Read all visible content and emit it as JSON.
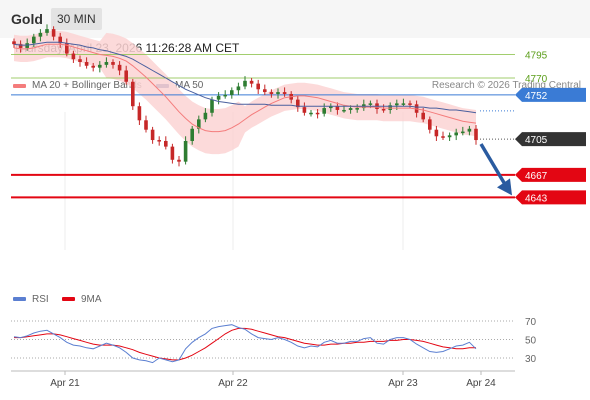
{
  "header": {
    "title": "Gold",
    "period": "30 MIN",
    "datetime": "Thursday, April 23, 2026 11:26:28 AM CET"
  },
  "legend": {
    "ma20": "MA 20 + Bollinger Bands",
    "ma50": "MA 50",
    "credit": "Research © 2026 Trading Central"
  },
  "colors": {
    "ma20": "#f47c7c",
    "bands": "#fbd3d3",
    "ma50": "#4a5f9e",
    "resistance": "#8bc34a",
    "pivot": "#3a7bd5",
    "support": "#e30613",
    "last": "#333333",
    "bull": "#2e7d32",
    "bear": "#c62828",
    "arrow": "#2a5ba0",
    "rsi": "#5b7fd1",
    "rsi_ma": "#e30613"
  },
  "levels": [
    {
      "label": "4795",
      "kind": "resistance"
    },
    {
      "label": "4770",
      "kind": "resistance"
    },
    {
      "label": "4752",
      "kind": "pivot"
    },
    {
      "label": "4705",
      "kind": "last"
    },
    {
      "label": "4667",
      "kind": "support"
    },
    {
      "label": "4643",
      "kind": "support"
    }
  ],
  "rsi_legend": {
    "rsi": "RSI",
    "ma": "9MA"
  },
  "rsi_axis": [
    "70",
    "50",
    "30"
  ],
  "x_axis": [
    "Apr 21",
    "Apr 22",
    "Apr 23",
    "Apr 24"
  ],
  "chart_data": {
    "type": "candlestick",
    "y_min": 4630,
    "y_max": 4830,
    "start": [
      4809,
      4806,
      4802,
      4807,
      4814,
      4818,
      4822,
      4814,
      4807,
      4796,
      4790,
      4787,
      4783,
      4781,
      4784,
      4787,
      4784,
      4778,
      4766,
      4740,
      4725,
      4715,
      4704,
      4703,
      4697,
      4683,
      4681,
      4703,
      4716,
      4726,
      4733,
      4747,
      4751,
      4752,
      4757,
      4761,
      4767,
      4764,
      4758,
      4755,
      4753,
      4755,
      4753,
      4747,
      4739,
      4733,
      4733,
      4732,
      4738,
      4740,
      4736,
      4736,
      4738,
      4738,
      4742,
      4743,
      4737,
      4736,
      4741,
      4743,
      4743,
      4742,
      4733,
      4726,
      4715,
      4708,
      4707,
      4709,
      4712,
      4713,
      4716
    ],
    "close": [
      4806,
      4802,
      4807,
      4814,
      4818,
      4822,
      4814,
      4807,
      4796,
      4790,
      4787,
      4783,
      4781,
      4784,
      4787,
      4784,
      4778,
      4766,
      4740,
      4725,
      4715,
      4704,
      4703,
      4697,
      4683,
      4681,
      4703,
      4716,
      4726,
      4733,
      4747,
      4751,
      4752,
      4757,
      4761,
      4767,
      4764,
      4758,
      4755,
      4753,
      4755,
      4753,
      4747,
      4739,
      4733,
      4733,
      4732,
      4738,
      4740,
      4736,
      4736,
      4738,
      4738,
      4742,
      4743,
      4737,
      4736,
      4741,
      4743,
      4743,
      4742,
      4733,
      4726,
      4715,
      4708,
      4707,
      4709,
      4712,
      4713,
      4716,
      4704
    ],
    "ma20": [
      4802,
      4801,
      4801,
      4802,
      4804,
      4806,
      4806,
      4806,
      4805,
      4803,
      4801,
      4799,
      4797,
      4795,
      4794,
      4793,
      4791,
      4788,
      4783,
      4777,
      4771,
      4764,
      4757,
      4750,
      4742,
      4734,
      4727,
      4721,
      4717,
      4714,
      4713,
      4713,
      4714,
      4717,
      4721,
      4726,
      4731,
      4735,
      4739,
      4743,
      4746,
      4749,
      4750,
      4751,
      4751,
      4750,
      4749,
      4747,
      4745,
      4743,
      4741,
      4740,
      4739,
      4739,
      4739,
      4739,
      4738,
      4738,
      4738,
      4738,
      4738,
      4737,
      4736,
      4734,
      4732,
      4730,
      4728,
      4726,
      4724,
      4723,
      4722
    ],
    "ma50": [
      4806,
      4805,
      4805,
      4806,
      4807,
      4808,
      4808,
      4808,
      4807,
      4806,
      4805,
      4803,
      4802,
      4800,
      4799,
      4797,
      4795,
      4793,
      4790,
      4786,
      4782,
      4778,
      4774,
      4770,
      4766,
      4762,
      4758,
      4755,
      4752,
      4749,
      4747,
      4745,
      4744,
      4743,
      4742,
      4742,
      4742,
      4742,
      4742,
      4741,
      4741,
      4741,
      4741,
      4740,
      4740,
      4740,
      4740,
      4740,
      4740,
      4740,
      4740,
      4740,
      4740,
      4740,
      4740,
      4740,
      4740,
      4740,
      4740,
      4740,
      4740,
      4739,
      4739,
      4738,
      4738,
      4737,
      4736,
      4736,
      4735,
      4734,
      4733
    ],
    "rsi": [
      53,
      52,
      54,
      57,
      59,
      60,
      56,
      52,
      47,
      44,
      43,
      41,
      40,
      43,
      46,
      44,
      41,
      36,
      30,
      28,
      27,
      25,
      30,
      28,
      26,
      28,
      40,
      47,
      52,
      56,
      62,
      64,
      65,
      66,
      63,
      61,
      56,
      52,
      51,
      50,
      52,
      50,
      47,
      43,
      41,
      43,
      42,
      47,
      49,
      46,
      46,
      48,
      48,
      51,
      52,
      46,
      45,
      50,
      52,
      52,
      50,
      45,
      41,
      37,
      36,
      37,
      40,
      43,
      44,
      47,
      40
    ],
    "rsi_ma": [
      52,
      52,
      53,
      54,
      55,
      56,
      56,
      55,
      53,
      51,
      49,
      47,
      45,
      44,
      44,
      44,
      43,
      41,
      39,
      36,
      34,
      32,
      30,
      29,
      28,
      28,
      30,
      33,
      37,
      41,
      46,
      51,
      56,
      60,
      62,
      62,
      61,
      59,
      57,
      55,
      53,
      52,
      50,
      48,
      46,
      45,
      44,
      44,
      45,
      45,
      46,
      46,
      47,
      47,
      48,
      48,
      48,
      49,
      49,
      50,
      50,
      49,
      48,
      46,
      44,
      42,
      41,
      40,
      40,
      41,
      41
    ],
    "rsi_range": [
      30,
      70
    ],
    "target_label": "4643"
  }
}
